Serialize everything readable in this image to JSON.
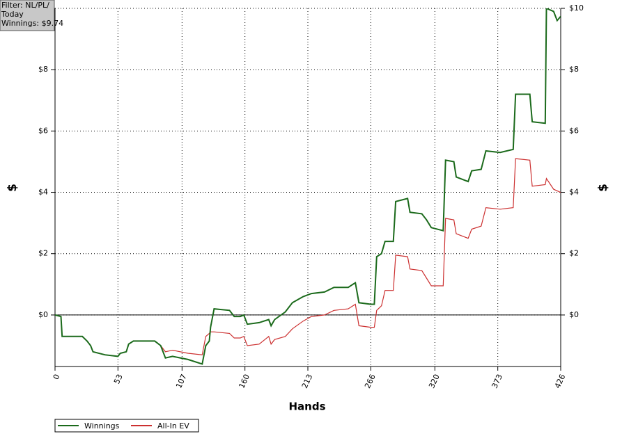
{
  "chart_data": {
    "type": "line",
    "annotations": [
      "Filter: NL/PL/",
      "Today",
      "Winnings: $9.74"
    ],
    "x_label": "Hands",
    "y_label": "$",
    "x": [
      0,
      5,
      6,
      23,
      27,
      30,
      32,
      42,
      53,
      55,
      60,
      62,
      66,
      84,
      89,
      93,
      99,
      112,
      124,
      127,
      130,
      131,
      134,
      147,
      151,
      156,
      159,
      162,
      172,
      180,
      182,
      185,
      194,
      200,
      209,
      216,
      227,
      235,
      247,
      253,
      256,
      266,
      269,
      271,
      275,
      278,
      285,
      287,
      297,
      299,
      309,
      313,
      317,
      327,
      329,
      336,
      338,
      348,
      351,
      359,
      363,
      375,
      386,
      388,
      400,
      402,
      413,
      414,
      420,
      423,
      426
    ],
    "series": [
      {
        "name": "Winnings",
        "color": "#1b6a1b",
        "values": [
          0,
          -0.05,
          -0.7,
          -0.7,
          -0.85,
          -1.0,
          -1.2,
          -1.3,
          -1.35,
          -1.25,
          -1.2,
          -0.95,
          -0.85,
          -0.85,
          -1.0,
          -1.4,
          -1.35,
          -1.45,
          -1.6,
          -1.0,
          -0.85,
          -0.4,
          0.2,
          0.15,
          -0.05,
          -0.05,
          0.0,
          -0.3,
          -0.25,
          -0.15,
          -0.35,
          -0.15,
          0.1,
          0.4,
          0.6,
          0.7,
          0.75,
          0.9,
          0.9,
          1.05,
          0.4,
          0.35,
          0.35,
          1.9,
          2.0,
          2.4,
          2.4,
          3.7,
          3.8,
          3.35,
          3.3,
          3.1,
          2.85,
          2.75,
          5.05,
          5.0,
          4.5,
          4.35,
          4.7,
          4.75,
          5.35,
          5.3,
          5.4,
          7.2,
          7.2,
          6.3,
          6.25,
          10.0,
          9.9,
          9.6,
          9.74
        ]
      },
      {
        "name": "All-In EV",
        "color": "#cc3030",
        "values": [
          0,
          -0.05,
          -0.7,
          -0.7,
          -0.85,
          -1.0,
          -1.2,
          -1.3,
          -1.35,
          -1.25,
          -1.2,
          -0.95,
          -0.85,
          -0.85,
          -1.0,
          -1.2,
          -1.15,
          -1.25,
          -1.3,
          -0.7,
          -0.6,
          -0.55,
          -0.55,
          -0.6,
          -0.75,
          -0.75,
          -0.7,
          -1.0,
          -0.95,
          -0.7,
          -0.95,
          -0.8,
          -0.7,
          -0.45,
          -0.2,
          -0.05,
          0.0,
          0.15,
          0.2,
          0.35,
          -0.35,
          -0.4,
          -0.4,
          0.15,
          0.3,
          0.8,
          0.8,
          1.95,
          1.9,
          1.5,
          1.45,
          1.2,
          0.95,
          0.95,
          3.15,
          3.1,
          2.65,
          2.5,
          2.8,
          2.9,
          3.5,
          3.45,
          3.5,
          5.1,
          5.05,
          4.2,
          4.25,
          4.45,
          4.1,
          4.05,
          4.0
        ]
      }
    ],
    "xlim": [
      0,
      426
    ],
    "xticks": [
      0,
      53,
      107,
      160,
      213,
      266,
      320,
      373,
      426
    ],
    "ylim": [
      -1.68,
      10
    ],
    "yticks": [
      {
        "value": 0,
        "label": "$0"
      },
      {
        "value": 2,
        "label": "$2"
      },
      {
        "value": 4,
        "label": "$4"
      },
      {
        "value": 6,
        "label": "$6"
      },
      {
        "value": 8,
        "label": "$8"
      },
      {
        "value": 10,
        "label": "$10"
      }
    ],
    "grid": true,
    "legend": "bottom-left"
  }
}
